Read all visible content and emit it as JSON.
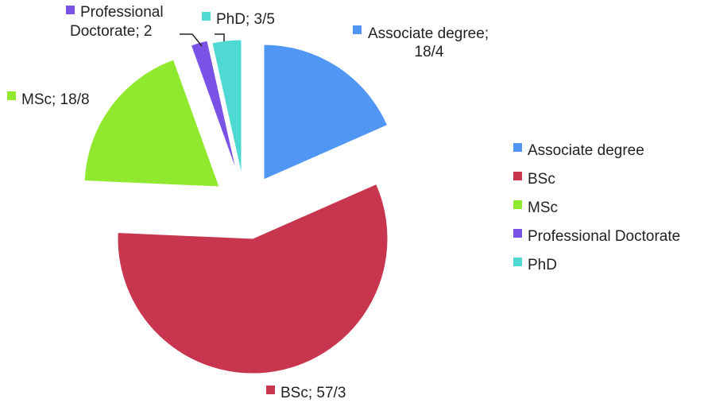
{
  "chart_data": {
    "type": "pie",
    "exploded": true,
    "legend_position": "right",
    "slices": [
      {
        "category": "Associate degree",
        "value": 18.4,
        "value_label": "18/4",
        "color": "#4f96f5"
      },
      {
        "category": "BSc",
        "value": 57.3,
        "value_label": "57/3",
        "color": "#c8354e"
      },
      {
        "category": "MSc",
        "value": 18.8,
        "value_label": "18/8",
        "color": "#90e82f"
      },
      {
        "category": "Professional Doctorate",
        "value": 2,
        "value_label": "2",
        "color": "#7b52e6"
      },
      {
        "category": "PhD",
        "value": 3.5,
        "value_label": "3/5",
        "color": "#4fd9d3"
      }
    ],
    "data_labels": [
      {
        "lines": [
          "Associate degree;",
          "18/4"
        ]
      },
      {
        "lines": [
          "BSc; 57/3"
        ]
      },
      {
        "lines": [
          "MSc; 18/8"
        ]
      },
      {
        "lines": [
          "Professional",
          "Doctorate; 2"
        ]
      },
      {
        "lines": [
          "PhD; 3/5"
        ]
      }
    ],
    "legend": [
      "Associate degree",
      "BSc",
      "MSc",
      "Professional Doctorate",
      "PhD"
    ]
  }
}
